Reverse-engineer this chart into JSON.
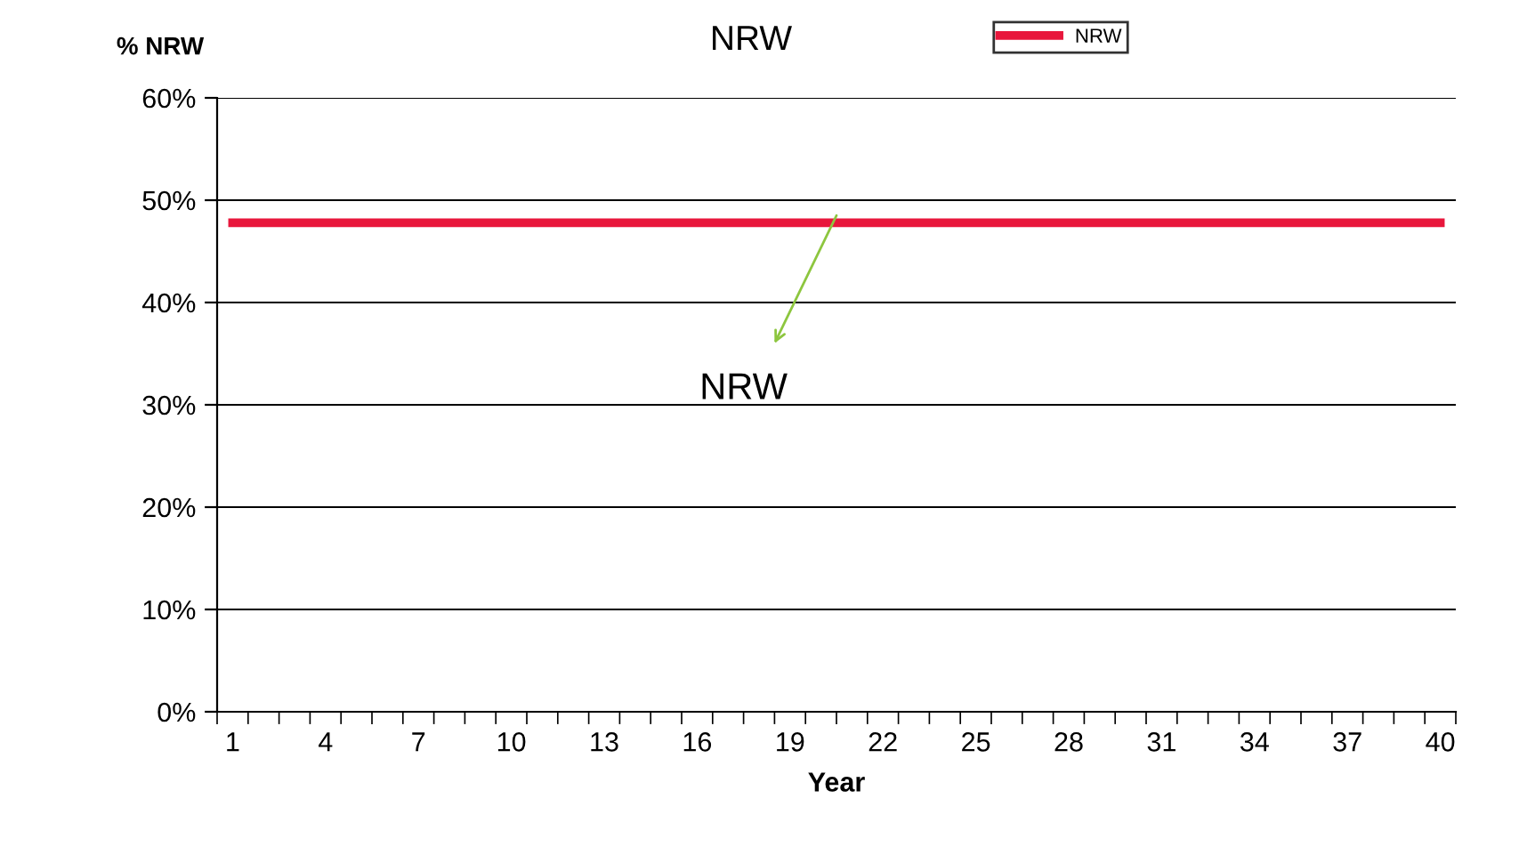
{
  "chart_data": {
    "type": "line",
    "title": "NRW",
    "xlabel": "Year",
    "ylabel": "% NRW",
    "categories": [
      "1",
      null,
      null,
      "4",
      null,
      null,
      "7",
      null,
      null,
      "10",
      null,
      null,
      "13",
      null,
      null,
      "16",
      null,
      null,
      "19",
      null,
      null,
      "22",
      null,
      null,
      "25",
      null,
      null,
      "28",
      null,
      null,
      "31",
      null,
      null,
      "34",
      null,
      null,
      "37",
      null,
      null,
      "40"
    ],
    "series": [
      {
        "name": "NRW",
        "color": "#e8173c",
        "values": [
          47.8,
          47.8,
          47.8,
          47.8,
          47.8,
          47.8,
          47.8,
          47.8,
          47.8,
          47.8,
          47.8,
          47.8,
          47.8,
          47.8,
          47.8,
          47.8,
          47.8,
          47.8,
          47.8,
          47.8,
          47.8,
          47.8,
          47.8,
          47.8,
          47.8,
          47.8,
          47.8,
          47.8,
          47.8,
          47.8,
          47.8,
          47.8,
          47.8,
          47.8,
          47.8,
          47.8,
          47.8,
          47.8,
          47.8,
          47.8
        ]
      }
    ],
    "ylim": [
      0,
      60
    ],
    "yticks": [
      {
        "value": 0,
        "label": "0%"
      },
      {
        "value": 10,
        "label": "10%"
      },
      {
        "value": 20,
        "label": "20%"
      },
      {
        "value": 30,
        "label": "30%"
      },
      {
        "value": 40,
        "label": "40%"
      },
      {
        "value": 50,
        "label": "50%"
      },
      {
        "value": 60,
        "label": "60%"
      }
    ],
    "annotations": [
      "NRW"
    ],
    "grid": "y",
    "legend": "top",
    "marker": "none",
    "line_style": "solid"
  }
}
